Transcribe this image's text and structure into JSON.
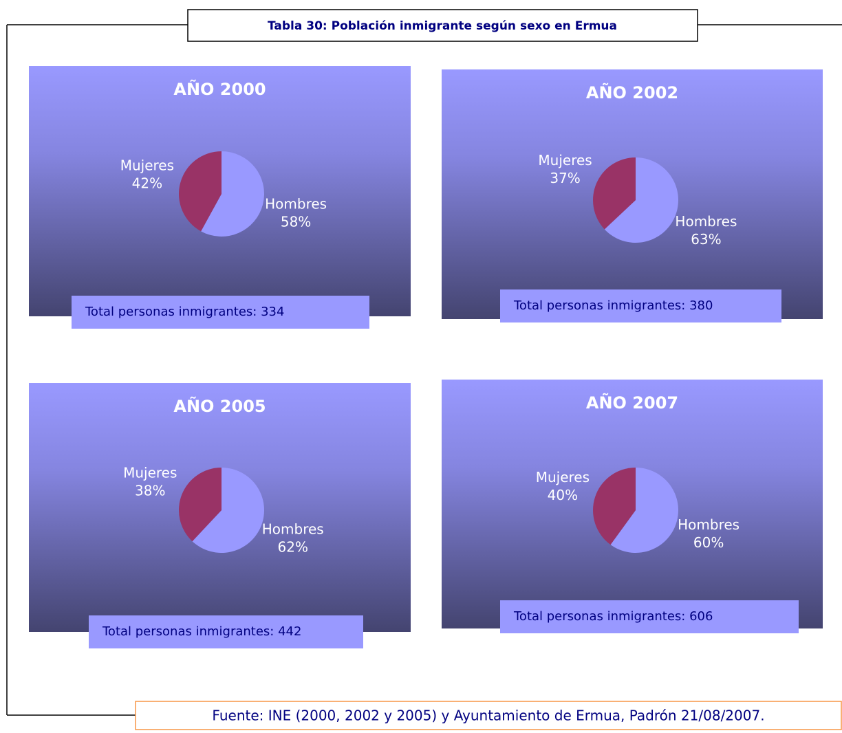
{
  "title": "Tabla 30: Población inmigrante según sexo en Ermua",
  "source": "Fuente: INE (2000, 2002 y 2005) y Ayuntamiento de Ermua, Padrón 21/08/2007.",
  "chart_data": [
    {
      "type": "pie",
      "title": "AÑO 2000",
      "categories": [
        "Hombres",
        "Mujeres"
      ],
      "values": [
        58,
        42
      ],
      "value_labels": [
        "58%",
        "42%"
      ],
      "colors": [
        "#9999ff",
        "#993366"
      ],
      "note": "Total personas inmigrantes: 334"
    },
    {
      "type": "pie",
      "title": "AÑO 2002",
      "categories": [
        "Hombres",
        "Mujeres"
      ],
      "values": [
        63,
        37
      ],
      "value_labels": [
        "63%",
        "37%"
      ],
      "colors": [
        "#9999ff",
        "#993366"
      ],
      "note": "Total personas inmigrantes: 380"
    },
    {
      "type": "pie",
      "title": "AÑO 2005",
      "categories": [
        "Hombres",
        "Mujeres"
      ],
      "values": [
        62,
        38
      ],
      "value_labels": [
        "62%",
        "38%"
      ],
      "colors": [
        "#9999ff",
        "#993366"
      ],
      "note": "Total personas inmigrantes: 442"
    },
    {
      "type": "pie",
      "title": "AÑO 2007",
      "categories": [
        "Hombres",
        "Mujeres"
      ],
      "values": [
        60,
        40
      ],
      "value_labels": [
        "60%",
        "40%"
      ],
      "colors": [
        "#9999ff",
        "#993366"
      ],
      "note": "Total personas inmigrantes: 606"
    }
  ]
}
